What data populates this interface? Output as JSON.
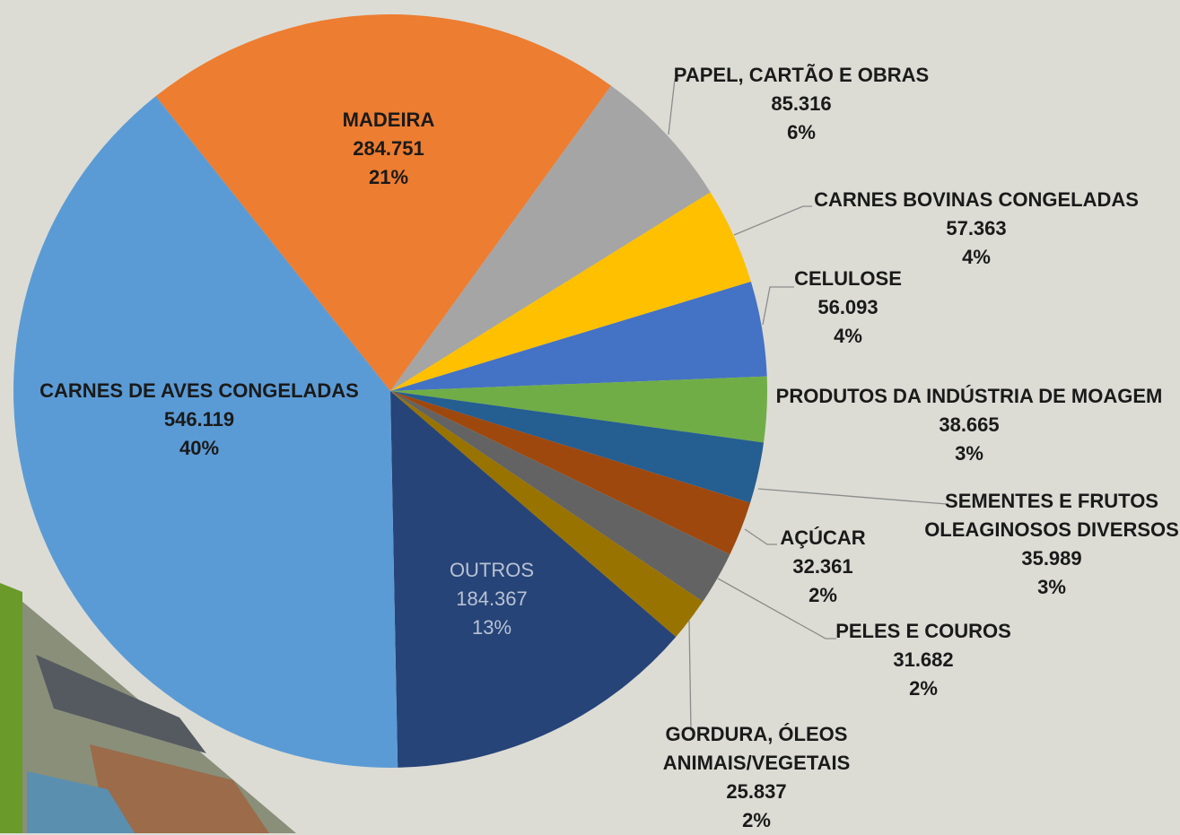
{
  "chart_data": {
    "type": "pie",
    "categories": [
      "MADEIRA",
      "PAPEL, CARTÃO E OBRAS",
      "CARNES BOVINAS CONGELADAS",
      "CELULOSE",
      "PRODUTOS DA INDÚSTRIA DE MOAGEM",
      "SEMENTES E FRUTOS OLEAGINOSOS DIVERSOS",
      "AÇÚCAR",
      "PELES E COUROS",
      "GORDURA, ÓLEOS ANIMAIS/VEGETAIS",
      "OUTROS",
      "CARNES DE AVES CONGELADAS"
    ],
    "values": [
      284751,
      85316,
      57363,
      56093,
      38665,
      35989,
      32361,
      31682,
      25837,
      184367,
      546119
    ],
    "value_labels": [
      "284.751",
      "85.316",
      "57.363",
      "56.093",
      "38.665",
      "35.989",
      "32.361",
      "31.682",
      "25.837",
      "184.367",
      "546.119"
    ],
    "percents": [
      21,
      6,
      4,
      4,
      3,
      3,
      2,
      2,
      2,
      13,
      40
    ],
    "percent_labels": [
      "21%",
      "6%",
      "4%",
      "4%",
      "3%",
      "3%",
      "2%",
      "2%",
      "2%",
      "13%",
      "40%"
    ],
    "colors": [
      "#ED7D31",
      "#A5A5A5",
      "#FFC000",
      "#4472C4",
      "#70AD47",
      "#255E91",
      "#9E480E",
      "#636363",
      "#997300",
      "#264478",
      "#5B9BD5"
    ]
  }
}
